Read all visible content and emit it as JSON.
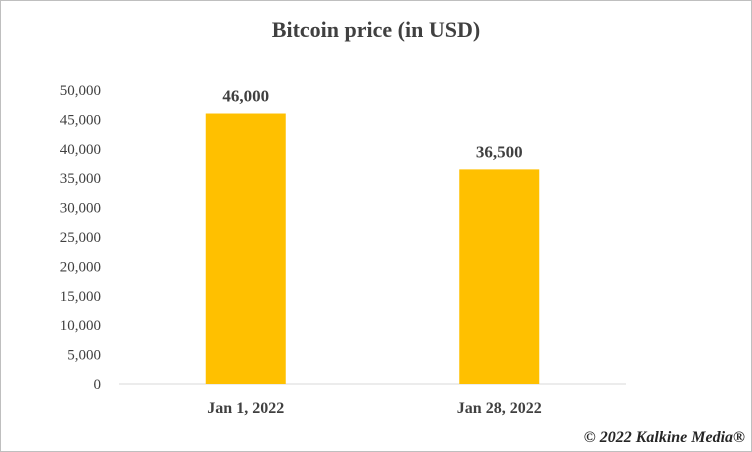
{
  "chart_data": {
    "type": "bar",
    "title": "Bitcoin price (in USD)",
    "categories": [
      "Jan 1, 2022",
      "Jan 28, 2022"
    ],
    "values": [
      46000,
      36500
    ],
    "data_labels": [
      "46,000",
      "36,500"
    ],
    "ylim": [
      0,
      50000
    ],
    "yticks": [
      0,
      5000,
      10000,
      15000,
      20000,
      25000,
      30000,
      35000,
      40000,
      45000,
      50000
    ],
    "ytick_labels": [
      "0",
      "5,000",
      "10,000",
      "15,000",
      "20,000",
      "25,000",
      "30,000",
      "35,000",
      "40,000",
      "45,000",
      "50,000"
    ],
    "grid": false,
    "legend": "none",
    "bar_color": "#ffc000"
  },
  "footer": {
    "copyright": "© 2022 Kalkine Media®"
  }
}
